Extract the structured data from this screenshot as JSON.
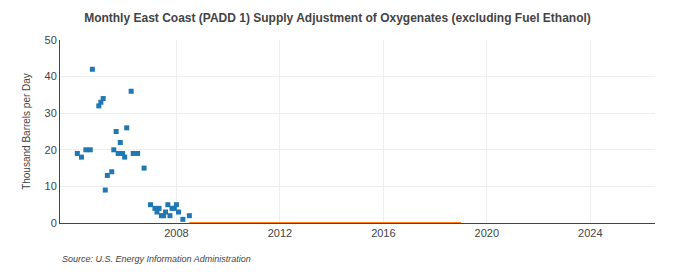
{
  "chart_data": {
    "type": "scatter",
    "title": "Monthly East Coast (PADD 1) Supply Adjustment of Oxygenates (excluding Fuel Ethanol)",
    "y_label": "Thousand Barrels per Day",
    "source": "Source: U.S. Energy Information Administration",
    "xlim": [
      2003.5,
      2026.5
    ],
    "xticks": [
      2008,
      2012,
      2016,
      2020,
      2024
    ],
    "ylim": [
      0,
      50
    ],
    "yticks": [
      0,
      10,
      20,
      30,
      40,
      50
    ],
    "grid": true,
    "series": [
      {
        "type": "scatter",
        "marker": "square",
        "x": [
          2004.17,
          2004.33,
          2004.5,
          2004.67,
          2004.75,
          2005.0,
          2005.08,
          2005.17,
          2005.25,
          2005.33,
          2005.5,
          2005.58,
          2005.67,
          2005.75,
          2005.83,
          2005.92,
          2006.0,
          2006.08,
          2006.25,
          2006.33,
          2006.5,
          2006.75,
          2007.0,
          2007.17,
          2007.25,
          2007.33,
          2007.42,
          2007.5,
          2007.58,
          2007.67,
          2007.75,
          2007.83,
          2007.92,
          2008.0,
          2008.08,
          2008.25,
          2008.5
        ],
        "values": [
          19,
          18,
          20,
          20,
          42,
          32,
          33,
          34,
          9,
          13,
          14,
          20,
          25,
          19,
          22,
          19,
          18,
          26,
          36,
          19,
          19,
          15,
          5,
          4,
          3,
          4,
          2,
          2,
          3,
          5,
          2,
          4,
          4,
          5,
          3,
          1,
          2
        ]
      },
      {
        "type": "line",
        "line_style": "solid",
        "x": [
          2008.5,
          2019.0
        ],
        "values": [
          0,
          0
        ]
      }
    ]
  }
}
